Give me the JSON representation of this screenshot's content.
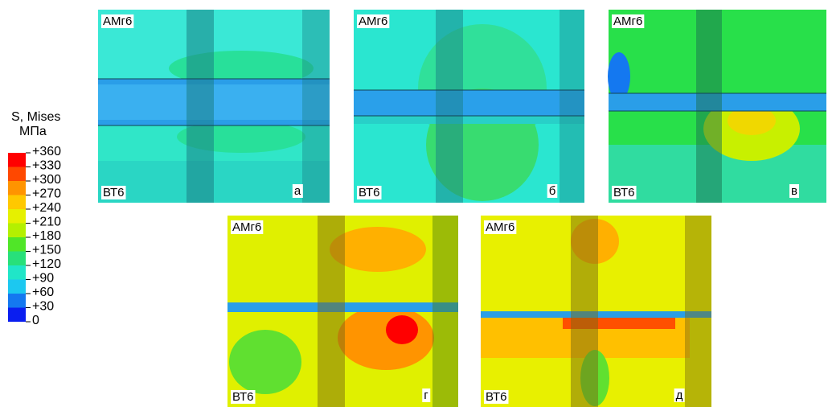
{
  "legend": {
    "title": "S, Mises",
    "unit": "МПа",
    "ticks": [
      "+360",
      "+330",
      "+300",
      "+270",
      "+240",
      "+210",
      "+180",
      "+150",
      "+120",
      "+90",
      "+60",
      "+30",
      "0"
    ]
  },
  "panels": [
    {
      "top": "АМг6",
      "bottom": "ВТ6",
      "letter": "а"
    },
    {
      "top": "АМг6",
      "bottom": "ВТ6",
      "letter": "б"
    },
    {
      "top": "АМг6",
      "bottom": "ВТ6",
      "letter": "в"
    },
    {
      "top": "АМг6",
      "bottom": "ВТ6",
      "letter": "г"
    },
    {
      "top": "АМг6",
      "bottom": "ВТ6",
      "letter": "д"
    }
  ]
}
